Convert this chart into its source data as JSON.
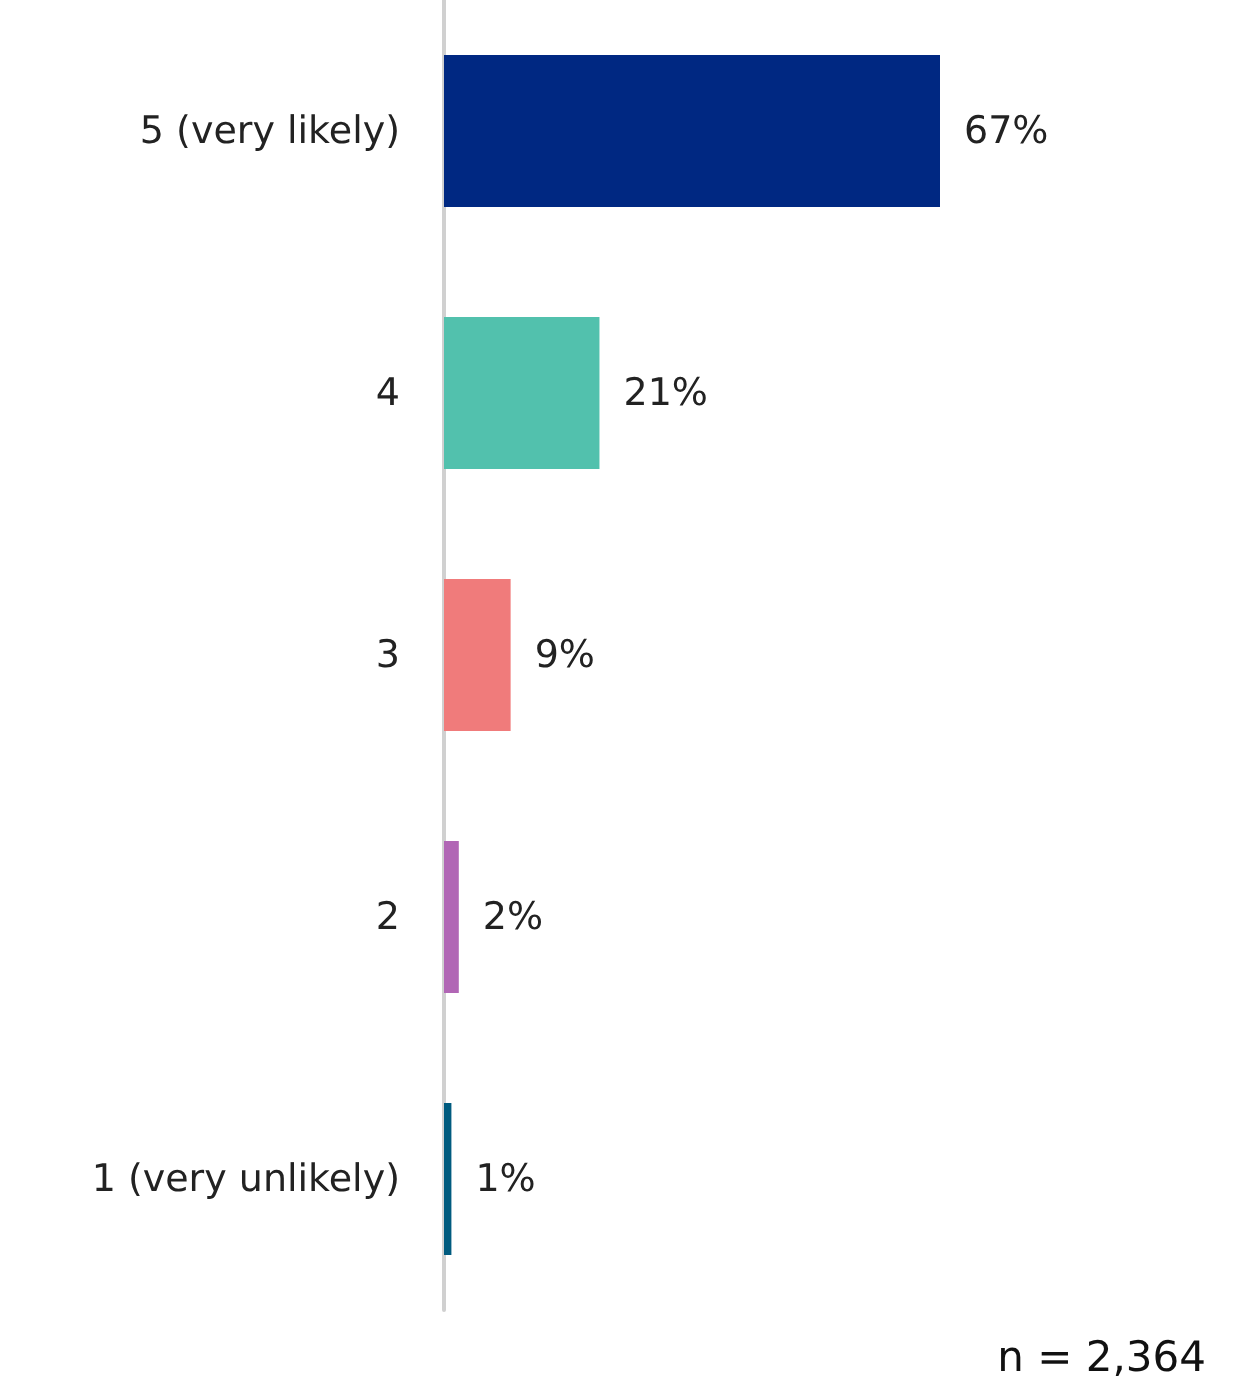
{
  "chart_data": {
    "type": "bar",
    "orientation": "horizontal",
    "categories": [
      "5 (very likely)",
      "4",
      "3",
      "2",
      "1 (very unlikely)"
    ],
    "values": [
      67,
      21,
      9,
      2,
      1
    ],
    "colors": [
      "#002882",
      "#52c1ad",
      "#f07b7b",
      "#b166b5",
      "#005b7f"
    ],
    "value_labels": [
      "67%",
      "21%",
      "9%",
      "2%",
      "1%"
    ],
    "annotations": [
      "n = 2,364"
    ]
  }
}
